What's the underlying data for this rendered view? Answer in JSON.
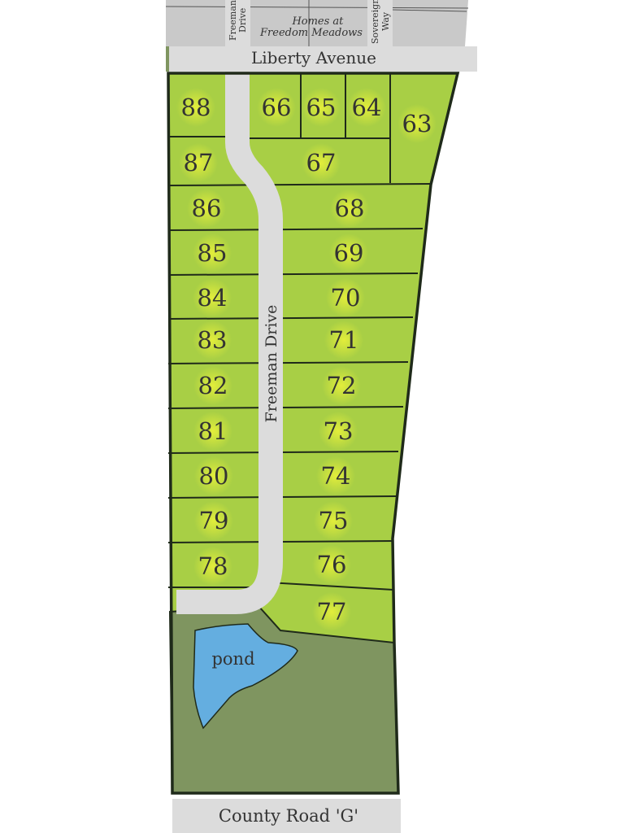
{
  "map": {
    "streets": {
      "top": "Liberty Avenue",
      "bottom": "County Road 'G'",
      "main": "Freeman Drive",
      "north_freeman_line1": "Freeman",
      "north_freeman_line2": "Drive",
      "north_sovereign_line1": "Sovereign",
      "north_sovereign_line2": "Way"
    },
    "neighbor_line1": "Homes at",
    "neighbor_line2": "Freedom Meadows",
    "pond": "pond",
    "lots": [
      "63",
      "64",
      "65",
      "66",
      "67",
      "68",
      "69",
      "70",
      "71",
      "72",
      "73",
      "74",
      "75",
      "76",
      "77",
      "78",
      "79",
      "80",
      "81",
      "82",
      "83",
      "84",
      "85",
      "86",
      "87",
      "88"
    ],
    "colors": {
      "lot": "#a8cf45",
      "lot_glow": "#e6ef3a",
      "open_space": "#7f9560",
      "pond": "#64aee0",
      "road": "#dcdcdc",
      "neighbor": "#c9c9c9",
      "line": "#1f2a1a"
    }
  }
}
